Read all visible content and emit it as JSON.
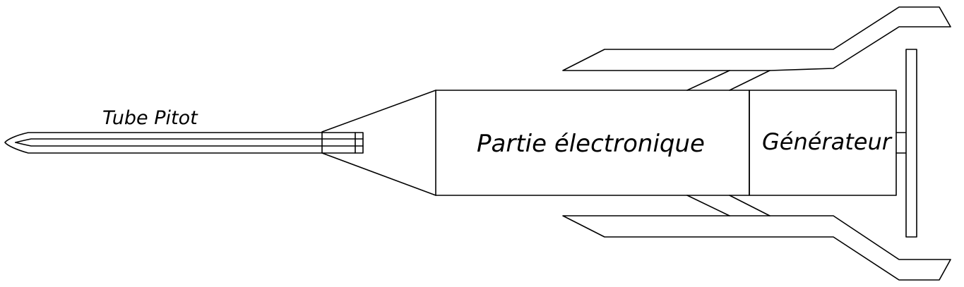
{
  "labels": {
    "tube_pitot": "Tube Pitot",
    "electronics": "Partie électronique",
    "generator": "Générateur"
  },
  "colors": {
    "line": "#000000",
    "background": "#ffffff"
  }
}
